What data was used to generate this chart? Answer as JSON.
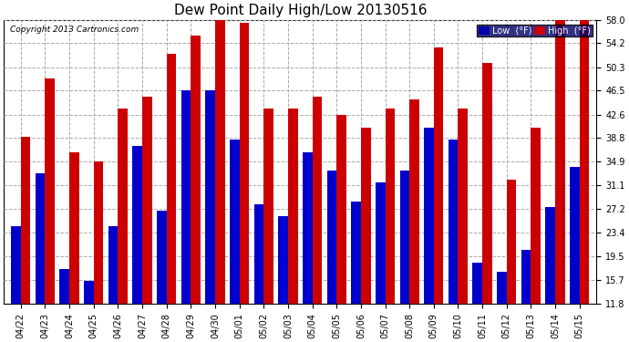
{
  "title": "Dew Point Daily High/Low 20130516",
  "copyright": "Copyright 2013 Cartronics.com",
  "ylabel_low": "Low  (°F)",
  "ylabel_high": "High  (°F)",
  "color_low": "#0000cc",
  "color_high": "#cc0000",
  "legend_low_bg": "#0000aa",
  "legend_high_bg": "#cc0000",
  "legend_frame_bg": "#000066",
  "background_color": "#ffffff",
  "plot_bg": "#ffffff",
  "ytick_labels": [
    "11.8",
    "15.7",
    "19.5",
    "23.4",
    "27.2",
    "31.1",
    "34.9",
    "38.8",
    "42.6",
    "46.5",
    "50.3",
    "54.2",
    "58.0"
  ],
  "ytick_values": [
    11.8,
    15.7,
    19.5,
    23.4,
    27.2,
    31.1,
    34.9,
    38.8,
    42.6,
    46.5,
    50.3,
    54.2,
    58.0
  ],
  "dates": [
    "04/22",
    "04/23",
    "04/24",
    "04/25",
    "04/26",
    "04/27",
    "04/28",
    "04/29",
    "04/30",
    "05/01",
    "05/02",
    "05/03",
    "05/04",
    "05/05",
    "05/06",
    "05/07",
    "05/08",
    "05/09",
    "05/10",
    "05/11",
    "05/12",
    "05/13",
    "05/14",
    "05/15"
  ],
  "high_vals": [
    39.0,
    48.5,
    36.5,
    35.0,
    43.5,
    45.5,
    52.5,
    55.5,
    58.0,
    57.5,
    43.5,
    43.5,
    45.5,
    42.5,
    40.5,
    43.5,
    45.0,
    53.5,
    43.5,
    51.0,
    32.0,
    40.5,
    58.0,
    58.0
  ],
  "low_vals": [
    24.5,
    33.0,
    17.5,
    15.5,
    24.5,
    37.5,
    27.0,
    46.5,
    46.5,
    38.5,
    28.0,
    26.0,
    36.5,
    33.5,
    28.5,
    31.5,
    33.5,
    40.5,
    38.5,
    18.5,
    17.0,
    20.5,
    27.5,
    34.0
  ],
  "ylim_min": 11.8,
  "ylim_max": 58.0,
  "grid_color": "#aaaaaa",
  "title_fontsize": 11,
  "tick_fontsize": 7,
  "bar_width": 0.4
}
